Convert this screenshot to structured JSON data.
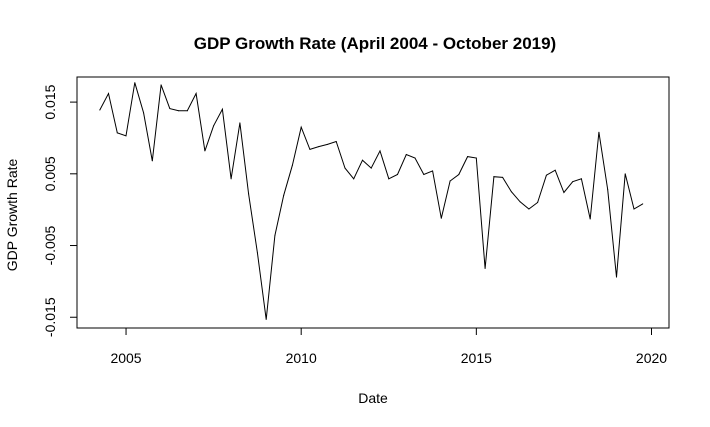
{
  "chart_data": {
    "type": "line",
    "title": "GDP Growth Rate (April 2004 - October 2019)",
    "xlabel": "Date",
    "ylabel": "GDP Growth Rate",
    "xlim": [
      2003.6,
      2020.5
    ],
    "ylim": [
      -0.0165,
      0.0185
    ],
    "x_ticks": [
      2005,
      2010,
      2015,
      2020
    ],
    "y_ticks": [
      -0.015,
      -0.005,
      0.005,
      0.015
    ],
    "y_tick_labels": [
      "-0.015",
      "-0.005",
      "0.005",
      "0.015"
    ],
    "grid": false,
    "legend": "none",
    "line_color": "#000000",
    "series": [
      {
        "x": [
          2004.25,
          2004.5,
          2004.75,
          2005.0,
          2005.25,
          2005.5,
          2005.75,
          2006.0,
          2006.25,
          2006.5,
          2006.75,
          2007.0,
          2007.25,
          2007.5,
          2007.75,
          2008.0,
          2008.25,
          2008.5,
          2008.75,
          2009.0,
          2009.25,
          2009.5,
          2009.75,
          2010.0,
          2010.25,
          2010.5,
          2010.75,
          2011.0,
          2011.25,
          2011.5,
          2011.75,
          2012.0,
          2012.25,
          2012.5,
          2012.75,
          2013.0,
          2013.25,
          2013.5,
          2013.75,
          2014.0,
          2014.25,
          2014.5,
          2014.75,
          2015.0,
          2015.25,
          2015.5,
          2015.75,
          2016.0,
          2016.25,
          2016.5,
          2016.75,
          2017.0,
          2017.25,
          2017.5,
          2017.75,
          2018.0,
          2018.25,
          2018.5,
          2018.75,
          2019.0,
          2019.25,
          2019.5,
          2019.75
        ],
        "values": [
          0.0139,
          0.0162,
          0.0107,
          0.0103,
          0.0177,
          0.0135,
          0.0068,
          0.0174,
          0.0141,
          0.0138,
          0.0138,
          0.0162,
          0.0082,
          0.0117,
          0.014,
          0.0043,
          0.0121,
          0.0022,
          -0.006,
          -0.0153,
          -0.0036,
          0.002,
          0.0062,
          0.0115,
          0.0084,
          0.0088,
          0.0091,
          0.0095,
          0.0058,
          0.0043,
          0.0069,
          0.0058,
          0.0082,
          0.0043,
          0.0049,
          0.0077,
          0.0072,
          0.0049,
          0.0054,
          -0.0012,
          0.004,
          0.0049,
          0.0074,
          0.0072,
          -0.0082,
          0.0046,
          0.0045,
          0.0025,
          0.0011,
          0.0001,
          0.001,
          0.0048,
          0.0055,
          0.0024,
          0.0039,
          0.0043,
          -0.0013,
          0.0108,
          0.0028,
          -0.0094,
          0.005,
          0.0001,
          0.0008
        ]
      }
    ]
  }
}
